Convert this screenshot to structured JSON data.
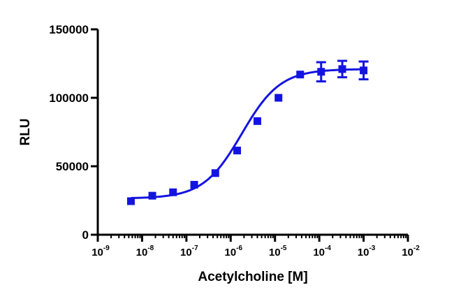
{
  "chart_data": {
    "type": "scatter",
    "title": "",
    "xlabel": "Acetylcholine [M]",
    "ylabel": "RLU",
    "x_scale": "log",
    "xlim": [
      1e-09,
      0.01
    ],
    "ylim": [
      0,
      150000
    ],
    "grid": false,
    "x_ticks": [
      {
        "base": "10",
        "exp": "-9",
        "value": 1e-09
      },
      {
        "base": "10",
        "exp": "-8",
        "value": 1e-08
      },
      {
        "base": "10",
        "exp": "-7",
        "value": 1e-07
      },
      {
        "base": "10",
        "exp": "-6",
        "value": 1e-06
      },
      {
        "base": "10",
        "exp": "-5",
        "value": 1e-05
      },
      {
        "base": "10",
        "exp": "-4",
        "value": 0.0001
      },
      {
        "base": "10",
        "exp": "-3",
        "value": 0.001
      },
      {
        "base": "10",
        "exp": "-2",
        "value": 0.01
      }
    ],
    "y_ticks": [
      {
        "label": "0",
        "value": 0
      },
      {
        "label": "50000",
        "value": 50000
      },
      {
        "label": "100000",
        "value": 100000
      },
      {
        "label": "150000",
        "value": 150000
      }
    ],
    "series": [
      {
        "color": "#1414e0",
        "marker": "square",
        "points": [
          {
            "x": 5.6e-09,
            "y": 24500,
            "err": 0
          },
          {
            "x": 1.7e-08,
            "y": 28500,
            "err": 0
          },
          {
            "x": 5e-08,
            "y": 31000,
            "err": 0
          },
          {
            "x": 1.5e-07,
            "y": 36500,
            "err": 0
          },
          {
            "x": 4.5e-07,
            "y": 45000,
            "err": 0
          },
          {
            "x": 1.4e-06,
            "y": 61500,
            "err": 0
          },
          {
            "x": 4e-06,
            "y": 83000,
            "err": 0
          },
          {
            "x": 1.2e-05,
            "y": 100000,
            "err": 0
          },
          {
            "x": 3.7e-05,
            "y": 117000,
            "err": 0
          },
          {
            "x": 0.00011,
            "y": 119000,
            "err": 7000
          },
          {
            "x": 0.00033,
            "y": 121000,
            "err": 6000
          },
          {
            "x": 0.001,
            "y": 120000,
            "err": 6500
          }
        ],
        "fit": {
          "model": "sigmoidal dose-response",
          "bottom": 26500,
          "top": 121000,
          "log_ec50": -5.75,
          "hill_slope": 1.0,
          "x_range": [
            5.6e-09,
            0.001
          ]
        }
      }
    ]
  }
}
